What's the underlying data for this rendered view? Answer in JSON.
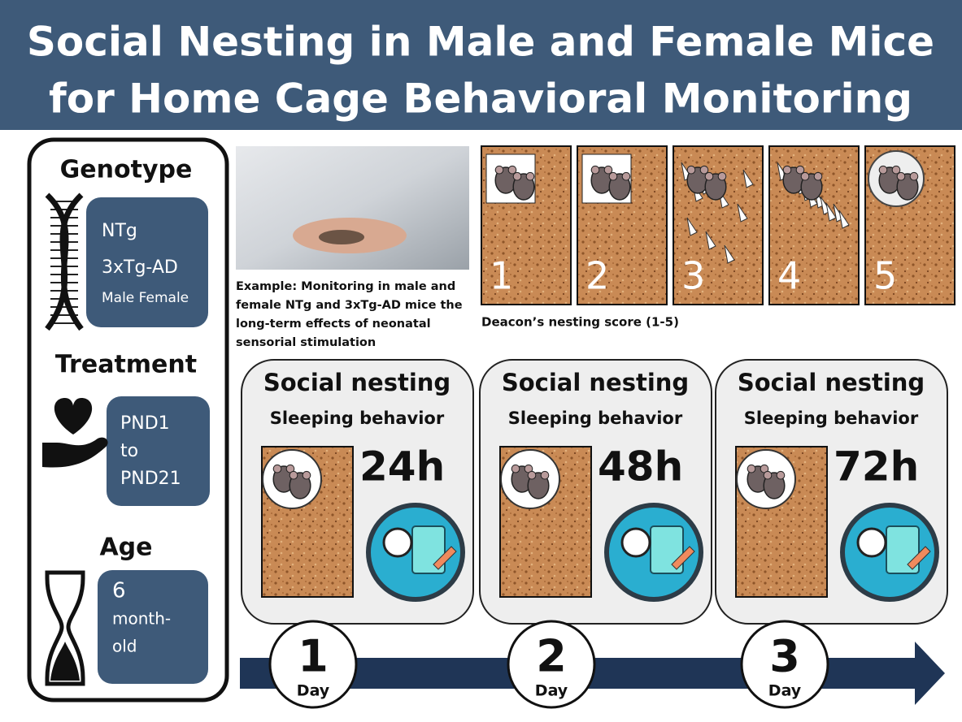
{
  "header": {
    "title_lines": [
      "Social Nesting in Male and Female Mice",
      "for Home Cage Behavioral Monitoring"
    ]
  },
  "sidebar": {
    "sections": [
      {
        "heading": "Genotype",
        "lines": [
          "NTg",
          "3xTg-AD",
          "Male Female"
        ]
      },
      {
        "heading": "Treatment",
        "lines": [
          "PND1",
          "to",
          "PND21"
        ]
      },
      {
        "heading": "Age",
        "lines": [
          "6",
          "month-",
          "old"
        ]
      }
    ]
  },
  "photo": {
    "caption_lines": [
      "Example: Monitoring in male and",
      "female NTg and 3xTg-AD mice the",
      "long-term effects of neonatal",
      "sensorial stimulation"
    ]
  },
  "nesting_scores": {
    "scores": [
      "1",
      "2",
      "3",
      "4",
      "5"
    ],
    "caption": "Deacon’s nesting score (1-5)"
  },
  "panels": [
    {
      "title": "Social nesting",
      "subtitle": "Sleeping behavior",
      "duration": "24h"
    },
    {
      "title": "Social nesting",
      "subtitle": "Sleeping behavior",
      "duration": "48h"
    },
    {
      "title": "Social nesting",
      "subtitle": "Sleeping behavior",
      "duration": "72h"
    }
  ],
  "timeline": {
    "days": [
      {
        "number": "1",
        "unit": "Day"
      },
      {
        "number": "2",
        "unit": "Day"
      },
      {
        "number": "3",
        "unit": "Day"
      }
    ]
  }
}
